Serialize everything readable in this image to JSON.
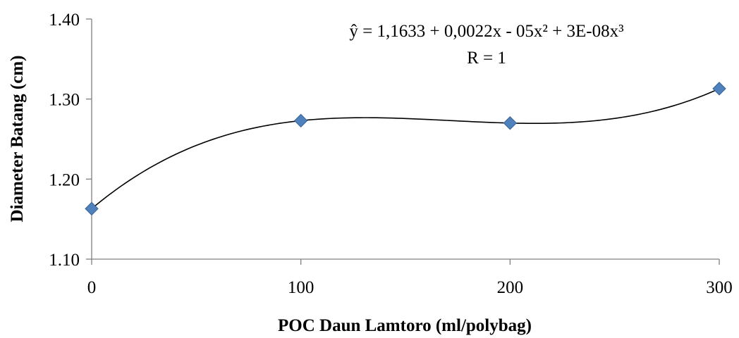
{
  "chart_data": {
    "type": "scatter",
    "title": "",
    "xlabel": "POC Daun Lamtoro (ml/polybag)",
    "ylabel": "Diameter Batang (cm)",
    "x": [
      0,
      100,
      200,
      300
    ],
    "y": [
      1.163,
      1.273,
      1.27,
      1.313
    ],
    "xlim": [
      0,
      300
    ],
    "ylim": [
      1.1,
      1.4
    ],
    "x_ticks": [
      "0",
      "100",
      "200",
      "300"
    ],
    "y_ticks": [
      "1.10",
      "1.20",
      "1.30",
      "1.40"
    ],
    "x_tick_values": [
      0,
      100,
      200,
      300
    ],
    "y_tick_values": [
      1.1,
      1.2,
      1.3,
      1.4
    ],
    "grid": false,
    "marker": "diamond",
    "marker_color": "#4F81BD",
    "trendline": {
      "type": "polynomial",
      "order": 3,
      "color": "#000000",
      "equation": "ŷ =  1,1633 + 0,0022x - 05x² + 3E-08x³",
      "r_label": "R = 1"
    }
  }
}
